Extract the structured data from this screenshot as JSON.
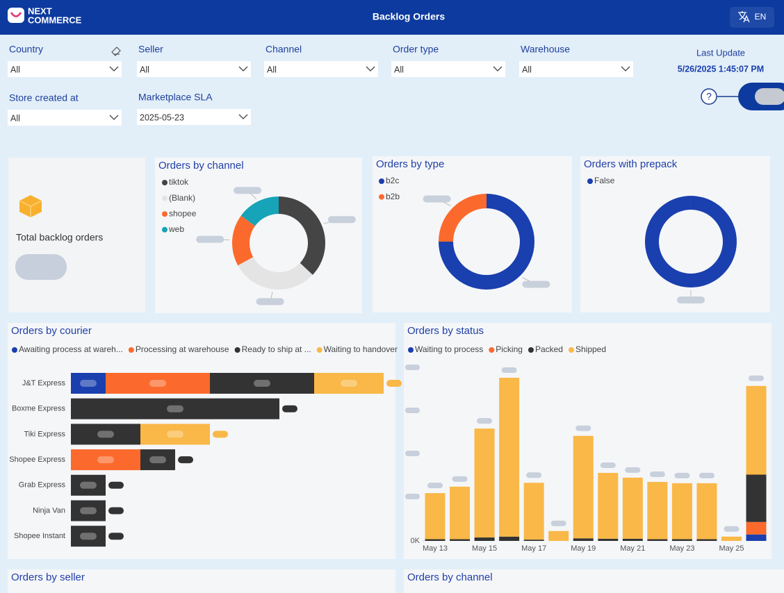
{
  "header": {
    "brand_line1": "NEXT",
    "brand_line2": "COMMERCE",
    "title": "Backlog Orders",
    "language": "EN"
  },
  "filters": [
    {
      "label": "Country",
      "value": "All"
    },
    {
      "label": "Seller",
      "value": "All"
    },
    {
      "label": "Channel",
      "value": "All"
    },
    {
      "label": "Order type",
      "value": "All"
    },
    {
      "label": "Warehouse",
      "value": "All"
    },
    {
      "label": "Store created at",
      "value": "All"
    },
    {
      "label": "Marketplace SLA",
      "value": "2025-05-23"
    }
  ],
  "last_update": {
    "label": "Last Update",
    "value": "5/26/2025 1:45:07 PM"
  },
  "help": "?",
  "kpi": {
    "label": "Total backlog orders"
  },
  "chart_data": [
    {
      "type": "pie",
      "title": "Orders by channel",
      "categories": [
        "tiktok",
        "(Blank)",
        "shopee",
        "web"
      ],
      "values": [
        37,
        30,
        18,
        15
      ],
      "colors": [
        "#454545",
        "#e4e4e4",
        "#fb6a2c",
        "#17a3b8"
      ]
    },
    {
      "type": "pie",
      "title": "Orders by type",
      "categories": [
        "b2c",
        "b2b"
      ],
      "values": [
        75,
        25
      ],
      "colors": [
        "#1a3fae",
        "#fb6a2c"
      ]
    },
    {
      "type": "pie",
      "title": "Orders with prepack",
      "categories": [
        "False"
      ],
      "values": [
        100
      ],
      "colors": [
        "#1a3fae"
      ]
    },
    {
      "type": "hbar",
      "title": "Orders by courier",
      "categories": [
        "J&T Express",
        "Boxme Express",
        "Tiki Express",
        "Shopee Express",
        "Grab Express",
        "Ninja Van",
        "Shopee Instant"
      ],
      "series": [
        {
          "name": "Awaiting process at wareh...",
          "color": "#1a3fae",
          "values": [
            1,
            null,
            null,
            null,
            null,
            null,
            null
          ]
        },
        {
          "name": "Processing at warehouse",
          "color": "#fb6a2c",
          "values": [
            3,
            null,
            null,
            2,
            null,
            null,
            null
          ]
        },
        {
          "name": "Ready to ship at ...",
          "color": "#333333",
          "values": [
            3,
            6,
            2,
            1,
            1,
            1,
            1
          ]
        },
        {
          "name": "Waiting to handover",
          "color": "#f9b847",
          "values": [
            2,
            null,
            2,
            null,
            null,
            null,
            null
          ]
        }
      ]
    },
    {
      "type": "bar",
      "title": "Orders by status",
      "categories": [
        "May 13",
        null,
        "May 15",
        null,
        "May 17",
        null,
        "May 19",
        null,
        "May 21",
        null,
        "May 23",
        null,
        "May 25",
        null
      ],
      "series": [
        {
          "name": "Waiting to process",
          "color": "#1a3fae",
          "values": [
            null,
            null,
            null,
            null,
            null,
            null,
            null,
            null,
            null,
            null,
            null,
            null,
            null,
            0.15
          ]
        },
        {
          "name": "Picking",
          "color": "#fb6a2c",
          "values": [
            null,
            null,
            null,
            null,
            null,
            null,
            null,
            null,
            null,
            null,
            null,
            null,
            null,
            0.29
          ]
        },
        {
          "name": "Packed",
          "color": "#333333",
          "values": [
            0.04,
            0.04,
            0.08,
            0.1,
            0.03,
            null,
            0.06,
            0.05,
            0.05,
            0.04,
            0.04,
            0.04,
            null,
            1.1
          ]
        },
        {
          "name": "Shipped",
          "color": "#f9b847",
          "values": [
            1.07,
            1.22,
            2.53,
            3.69,
            1.32,
            0.23,
            2.38,
            1.53,
            1.42,
            1.33,
            1.3,
            1.3,
            0.1,
            2.06
          ]
        }
      ],
      "ylim": [
        0,
        4
      ],
      "yticks": [
        {
          "value": 0,
          "label": "0K"
        }
      ]
    },
    {
      "type": "panel",
      "title": "Orders by seller"
    },
    {
      "type": "panel",
      "title": "Orders by channel"
    }
  ]
}
